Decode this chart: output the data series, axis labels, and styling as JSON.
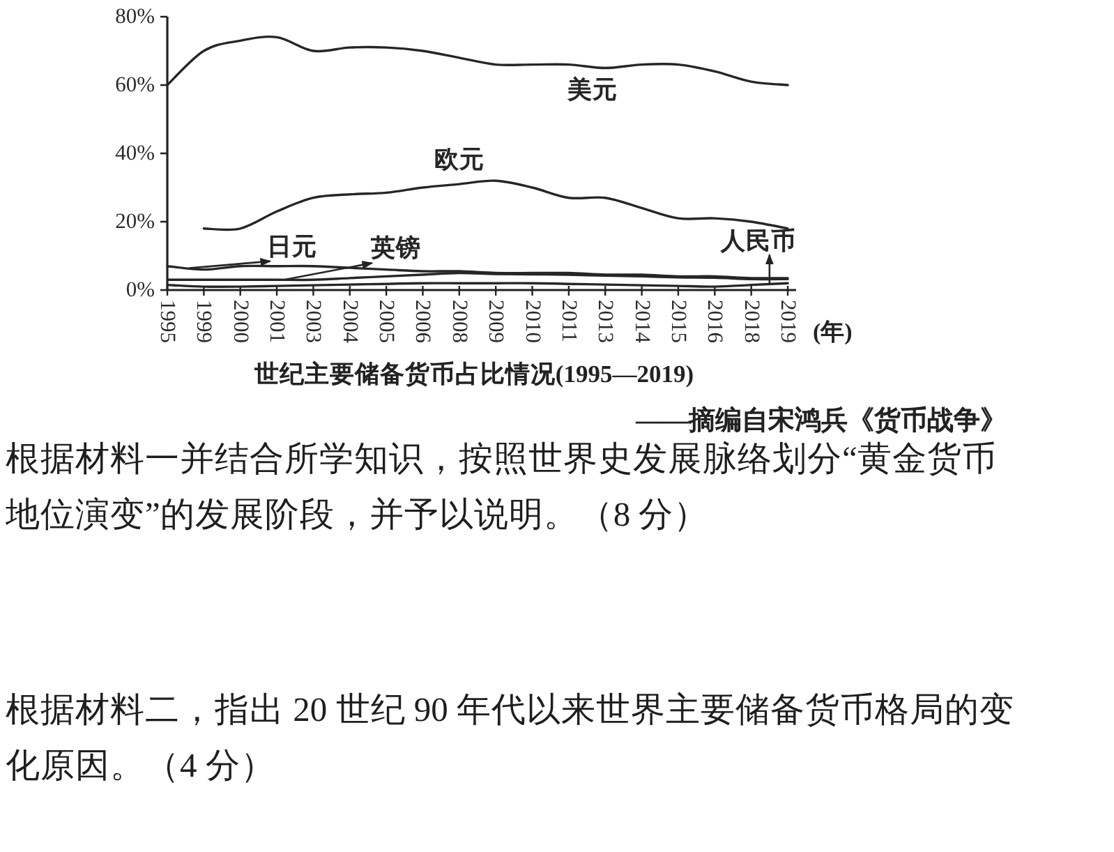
{
  "chart_data": {
    "type": "line",
    "title": "世纪主要储备货币占比情况(1995—2019)",
    "xlabel": "(年)",
    "categories": [
      "1995",
      "1999",
      "2000",
      "2001",
      "2003",
      "2004",
      "2005",
      "2006",
      "2008",
      "2009",
      "2010",
      "2011",
      "2013",
      "2014",
      "2015",
      "2016",
      "2018",
      "2019"
    ],
    "ylim": [
      0,
      80
    ],
    "yticks": [
      {
        "value": 0,
        "label": "0%"
      },
      {
        "value": 20,
        "label": "20%"
      },
      {
        "value": 40,
        "label": "40%"
      },
      {
        "value": 60,
        "label": "60%"
      },
      {
        "value": 80,
        "label": "80%"
      }
    ],
    "series": [
      {
        "name": "美元",
        "color": "#262626",
        "values": [
          60,
          70,
          73,
          74,
          70,
          71,
          71,
          70,
          68,
          66,
          66,
          66,
          65,
          66,
          66,
          64,
          61,
          60
        ]
      },
      {
        "name": "欧元",
        "color": "#262626",
        "values": [
          null,
          18,
          18,
          23,
          27,
          28,
          28.5,
          30,
          31,
          32,
          30,
          27,
          27,
          24,
          21,
          21,
          20,
          18
        ]
      },
      {
        "name": "日元",
        "color": "#262626",
        "values": [
          7,
          6,
          7,
          7,
          7,
          6.5,
          6,
          5.5,
          5.5,
          5,
          5,
          5,
          4.5,
          4.5,
          4,
          4,
          3.5,
          3.5
        ]
      },
      {
        "name": "英镑",
        "color": "#262626",
        "values": [
          3,
          3,
          3,
          3,
          3,
          3.5,
          4,
          4.5,
          5,
          4.7,
          4.6,
          4.5,
          4.2,
          4,
          3.7,
          3.6,
          3.2,
          3.2
        ]
      },
      {
        "name": "人民币",
        "color": "#262626",
        "values": [
          1.5,
          1,
          1,
          1.2,
          1.4,
          1.6,
          1.8,
          2,
          2,
          2,
          2,
          1.8,
          1.6,
          1.4,
          1.2,
          1,
          1.5,
          2
        ]
      }
    ],
    "annotations": [
      "——摘编自宋鸿兵《货币战争》",
      "根据材料一并结合所学知识，按照世界史发展脉络划分“黄金货币地位演变”的发展阶段，并予以说明。（8 分）",
      "根据材料二，指出 20 世纪 90 年代以来世界主要储备货币格局的变化原因。（4 分）"
    ]
  }
}
